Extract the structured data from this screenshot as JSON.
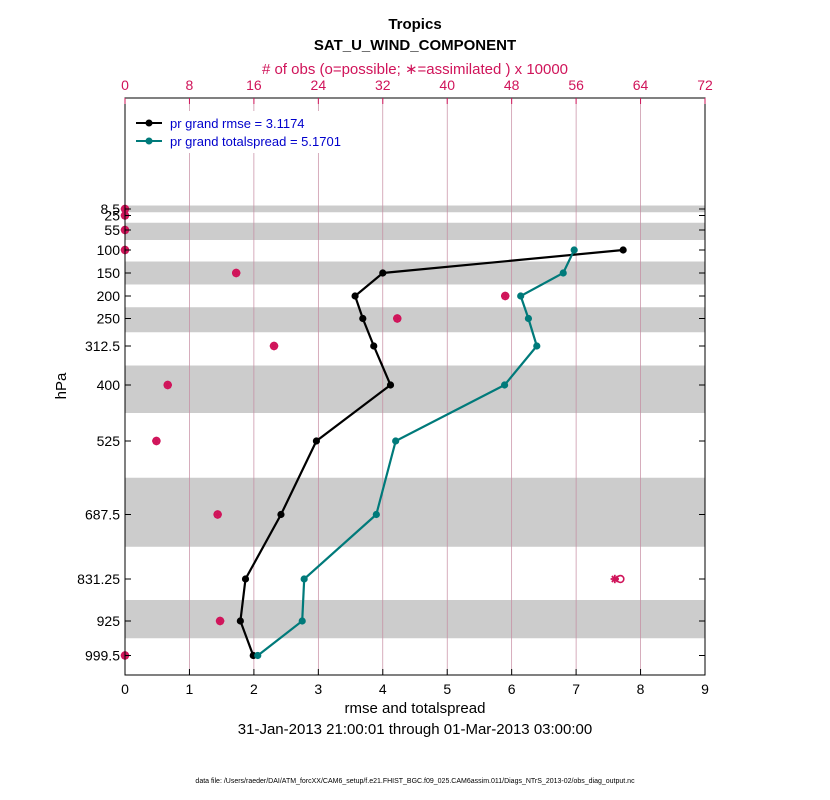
{
  "chart_data": {
    "type": "line",
    "title": "Tropics",
    "subtitle": "SAT_U_WIND_COMPONENT",
    "top_axis_label": "# of obs (o=possible; ∗=assimilated ) x 10000",
    "xlabel": "rmse and totalspread",
    "ylabel": "hPa",
    "date_range": "31-Jan-2013 21:00:01 through 01-Mar-2013 03:00:00",
    "footnote": "data file: /Users/raeder/DAI/ATM_forcXX/CAM6_setup/f.e21.FHIST_BGC.f09_025.CAM6assim.011/Diags_NTrS_2013-02/obs_diag_output.nc",
    "xlim": [
      0,
      9
    ],
    "xticks": [
      "0",
      "1",
      "2",
      "3",
      "4",
      "5",
      "6",
      "7",
      "8",
      "9"
    ],
    "top_xlim": [
      0,
      72
    ],
    "top_xticks": [
      "0",
      "8",
      "16",
      "24",
      "32",
      "40",
      "48",
      "56",
      "64",
      "72"
    ],
    "levels": [
      8.5,
      25,
      55,
      100,
      150,
      200,
      250,
      312.5,
      400,
      525,
      687.5,
      831.25,
      925,
      999.5
    ],
    "level_labels": [
      "8.5",
      "25",
      "55",
      "100",
      "150",
      "200",
      "250",
      "312.5",
      "400",
      "525",
      "687.5",
      "831.25",
      "925",
      "999.5"
    ],
    "grid": "vertical lines at top-axis ticks",
    "legend_position": "top-left",
    "series": [
      {
        "name": "pr grand rmse = 3.1174",
        "color": "#000000",
        "levels": [
          100,
          150,
          200,
          250,
          312.5,
          400,
          525,
          687.5,
          831.25,
          925,
          999.5
        ],
        "values": [
          7.73,
          4.0,
          3.57,
          3.69,
          3.86,
          4.12,
          2.97,
          2.42,
          1.87,
          1.79,
          1.99
        ]
      },
      {
        "name": "pr grand totalspread = 5.1701",
        "color": "#007a7a",
        "levels": [
          100,
          150,
          200,
          250,
          312.5,
          400,
          525,
          687.5,
          831.25,
          925,
          999.5
        ],
        "values": [
          6.97,
          6.8,
          6.14,
          6.26,
          6.39,
          5.89,
          4.2,
          3.9,
          2.78,
          2.75,
          2.06
        ]
      }
    ],
    "obs_count": {
      "color": "#d0145a",
      "levels": [
        8.5,
        25,
        55,
        100,
        150,
        200,
        250,
        312.5,
        400,
        525,
        687.5,
        831.25,
        925,
        999.5
      ],
      "possible": [
        0,
        0,
        0,
        0,
        13.8,
        47.2,
        33.8,
        18.5,
        5.3,
        3.9,
        11.5,
        61.5,
        11.8,
        0
      ],
      "assimilated": [
        0,
        0,
        0,
        0,
        13.8,
        47.2,
        33.8,
        18.5,
        5.3,
        3.9,
        11.5,
        60.8,
        11.8,
        0
      ]
    }
  }
}
